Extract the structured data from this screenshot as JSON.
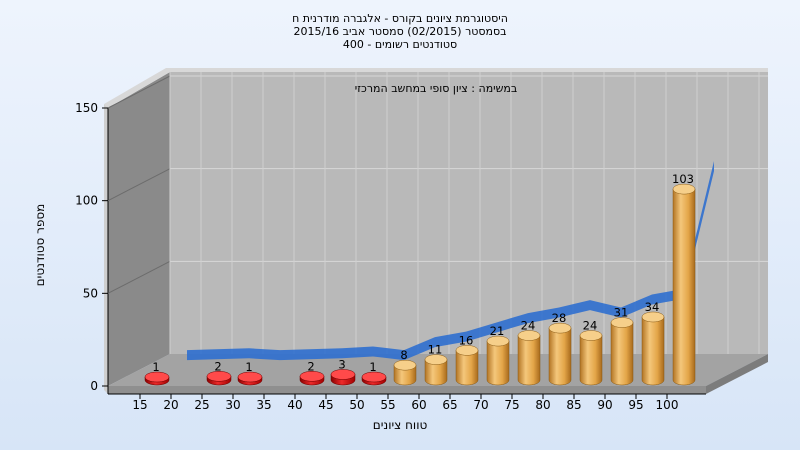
{
  "chart_data": {
    "type": "bar",
    "title_lines": [
      "היסטוגרמת ציונים בקורס - אלגברה מודרנית ח",
      "בסמסטר  (02/2015)  סמסטר אביב 2015/16",
      "סטודנטים רשומים - 400"
    ],
    "annotation": "במשימה : ציון סופי במחשב המרכזי",
    "xlabel": "טווח ציונים",
    "ylabel": "מספר סטודנטים",
    "categories": [
      "15",
      "20",
      "25",
      "30",
      "35",
      "40",
      "45",
      "50",
      "55",
      "60",
      "65",
      "70",
      "75",
      "80",
      "85",
      "90",
      "95",
      "100"
    ],
    "values": [
      1,
      null,
      2,
      1,
      null,
      2,
      3,
      1,
      8,
      11,
      16,
      21,
      24,
      28,
      24,
      31,
      34,
      103
    ],
    "ylim": [
      0,
      150
    ],
    "yticks": [
      "0",
      "50",
      "100",
      "150"
    ],
    "highlight_threshold": 55,
    "low_color": "#cc1111",
    "bar_color": "#e0a040",
    "trend_color": "#2f6fcf",
    "grid": true
  }
}
